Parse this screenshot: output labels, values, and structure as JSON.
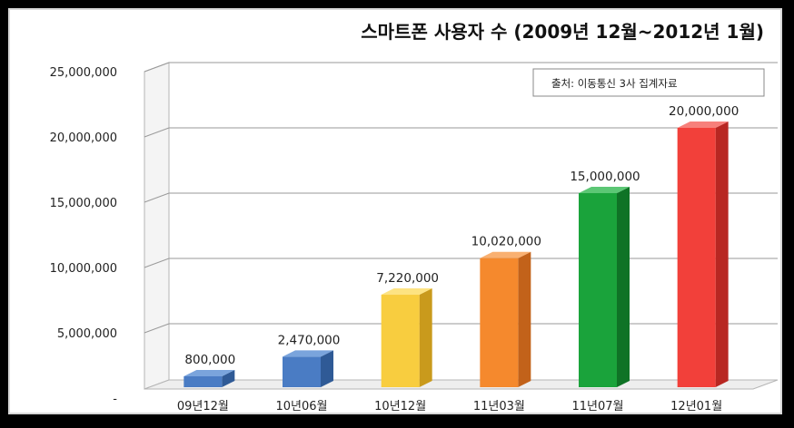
{
  "chart_data": {
    "type": "bar",
    "title": "스마트폰 사용자 수 (2009년 12월~2012년 1월)",
    "source_note": "출처: 이동통신 3사 집계자료",
    "categories": [
      "09년12월",
      "10년06월",
      "10년12월",
      "11년03월",
      "11년07월",
      "12년01월"
    ],
    "values": [
      800000,
      2470000,
      7220000,
      10020000,
      15000000,
      20000000
    ],
    "value_labels": [
      "800,000",
      "2,470,000",
      "7,220,000",
      "10,020,000",
      "15,000,000",
      "20,000,000"
    ],
    "y_ticks": [
      0,
      5000000,
      10000000,
      15000000,
      20000000,
      25000000
    ],
    "y_tick_labels": [
      "-",
      "5,000,000",
      "10,000,000",
      "15,000,000",
      "20,000,000",
      "25,000,000"
    ],
    "ylim": [
      0,
      25000000
    ],
    "xlabel": "",
    "ylabel": "",
    "grid": true,
    "legend": "none",
    "bar_colors": [
      {
        "front": "#4a7cc4",
        "side": "#2f5a96",
        "top": "#7aa4dc"
      },
      {
        "front": "#4a7cc4",
        "side": "#2f5a96",
        "top": "#7aa4dc"
      },
      {
        "front": "#f8cd3f",
        "side": "#c99a1c",
        "top": "#fde382"
      },
      {
        "front": "#f5892d",
        "side": "#c2621a",
        "top": "#f9b071"
      },
      {
        "front": "#1aa33b",
        "side": "#0f7326",
        "top": "#5cc775"
      },
      {
        "front": "#f2403a",
        "side": "#b82722",
        "top": "#f7807b"
      }
    ]
  }
}
